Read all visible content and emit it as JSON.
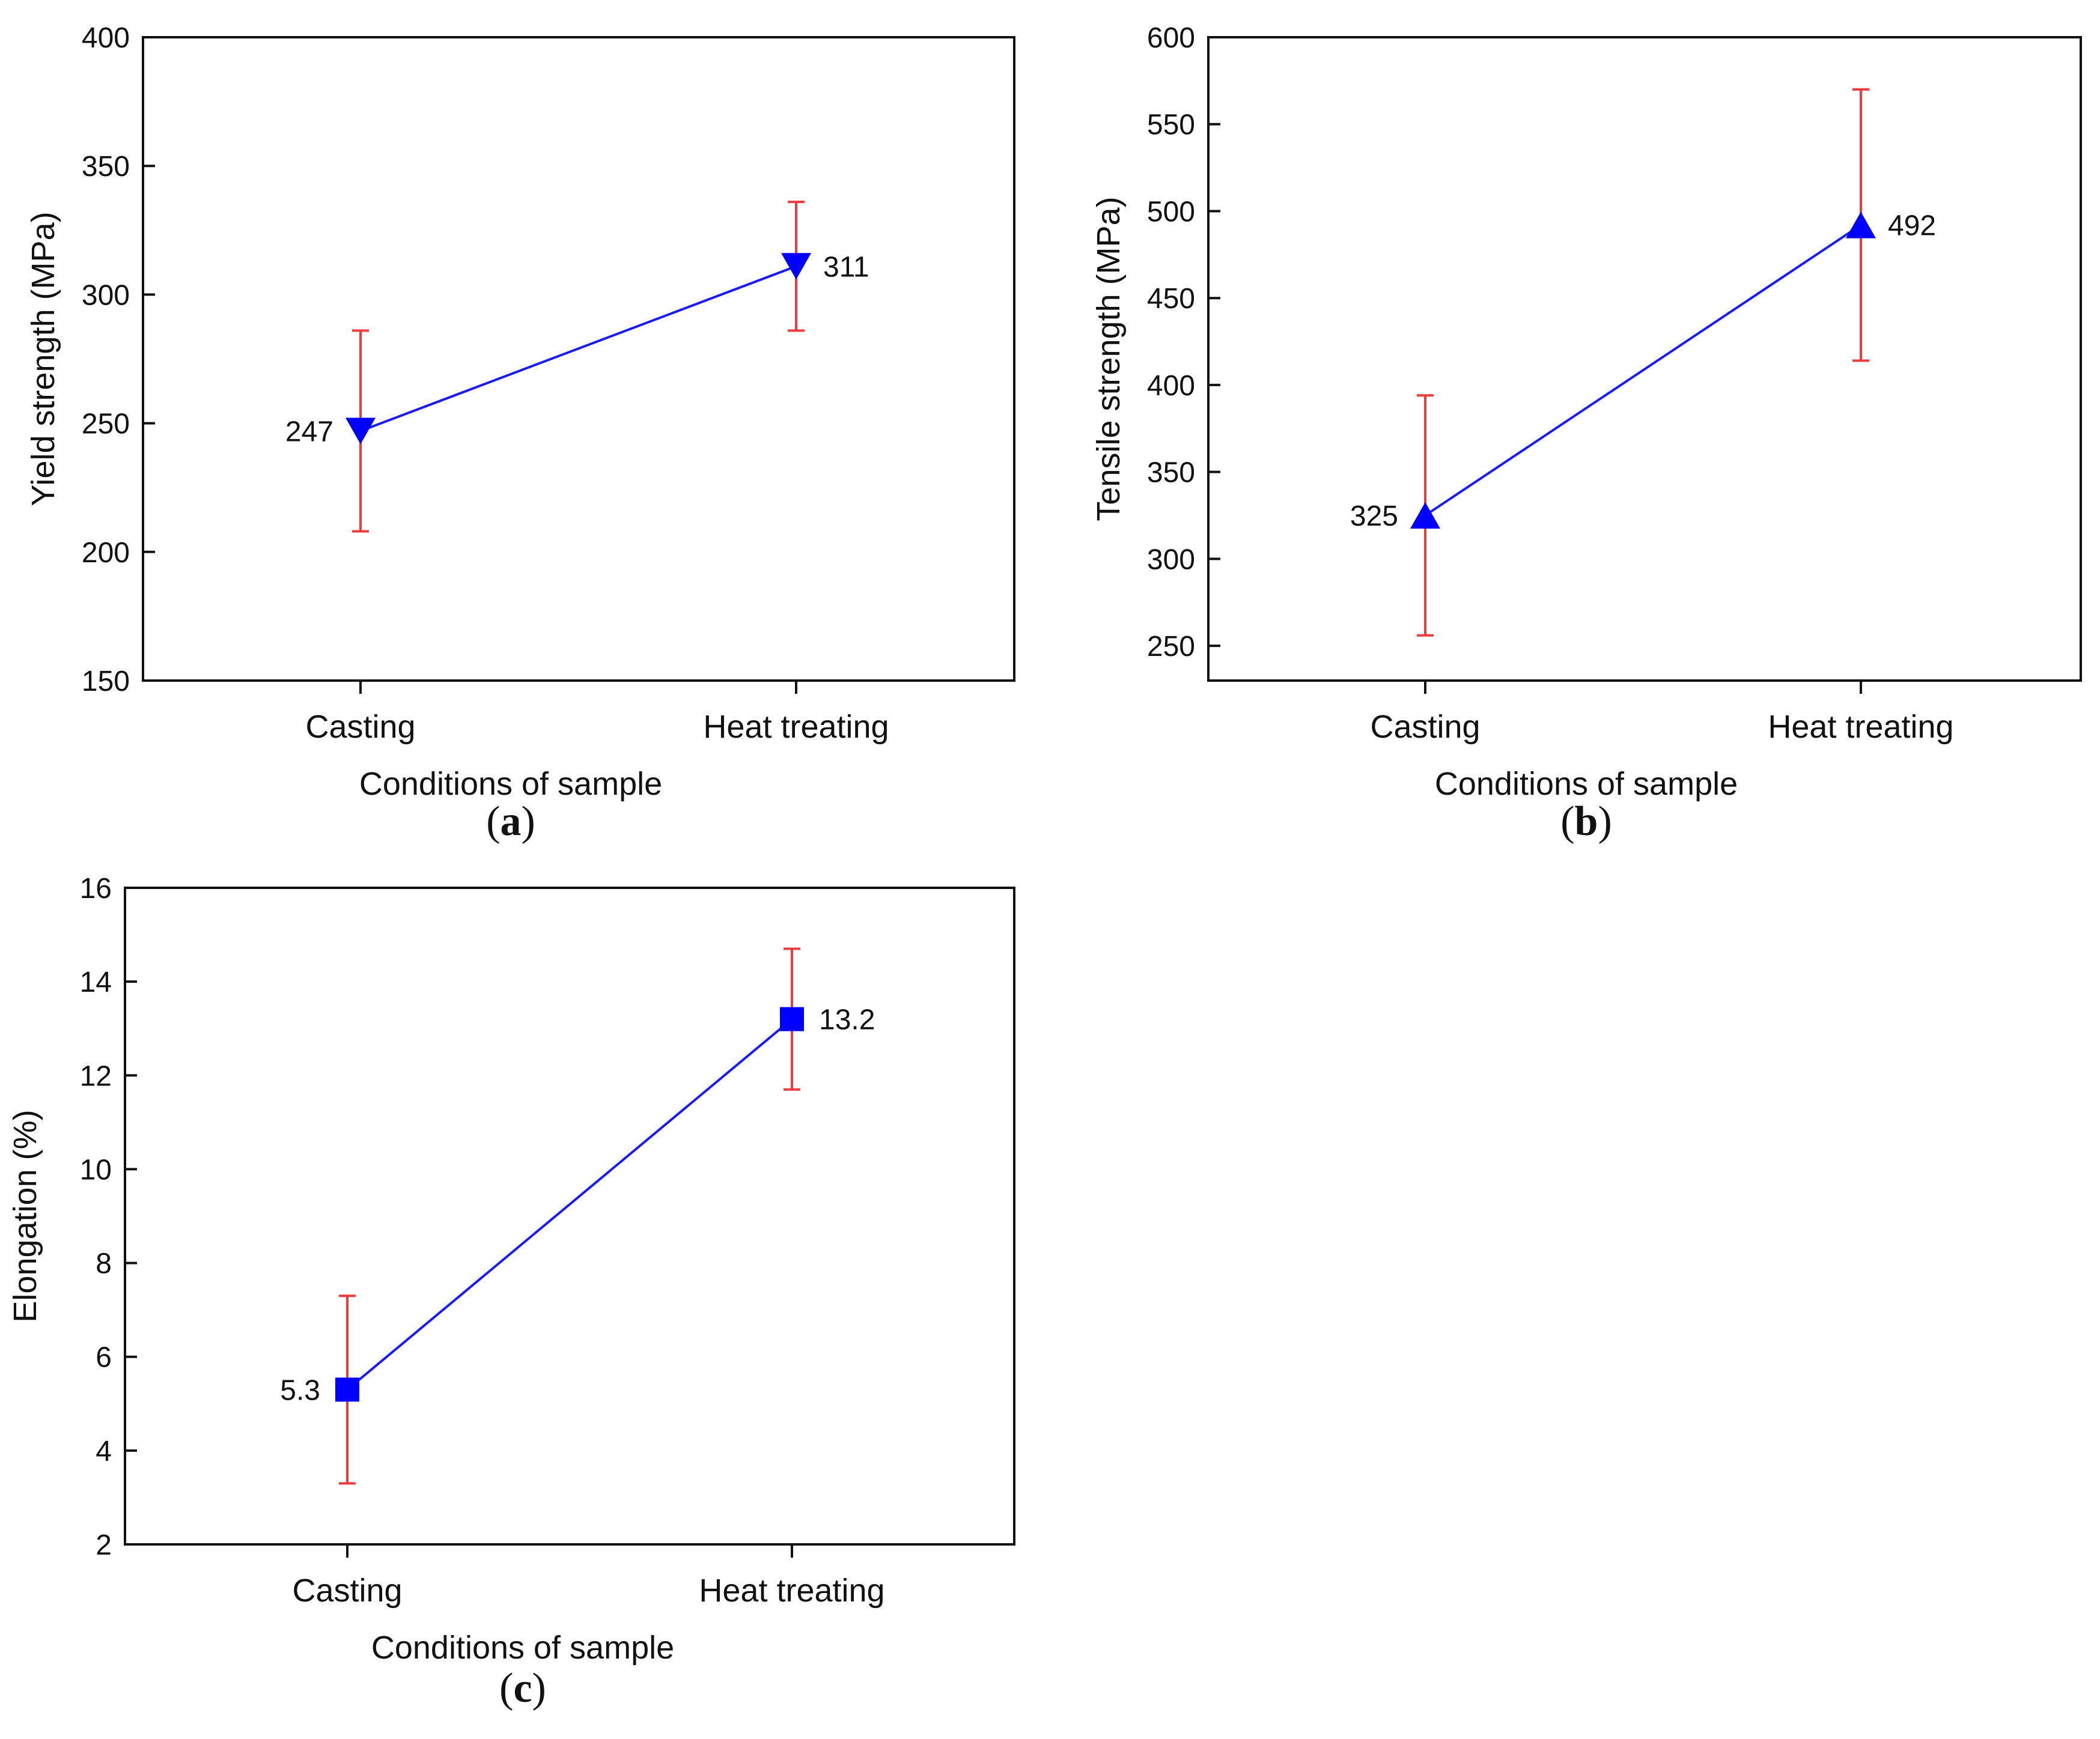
{
  "figure": {
    "colors": {
      "line": "#1a1aff",
      "marker": "#0000ff",
      "errorbar": "#ee3b3b",
      "axis": "#111111"
    }
  },
  "chart_data": [
    {
      "id": "a",
      "type": "line",
      "caption_letter": "a",
      "xlabel": "Conditions of sample",
      "ylabel": "Yield strength (MPa)",
      "categories": [
        "Casting",
        "Heat treating"
      ],
      "values": [
        247,
        311
      ],
      "value_labels": [
        "247",
        "311"
      ],
      "error_low": [
        208,
        286
      ],
      "error_high": [
        286,
        336
      ],
      "ylim": [
        150,
        400
      ],
      "yticks": [
        150,
        200,
        250,
        300,
        350,
        400
      ],
      "ytick_labels": [
        "150",
        "200",
        "250",
        "300",
        "350",
        "400"
      ],
      "marker": "triangle-down",
      "marker_icon": "triangle-down-marker-icon",
      "label_side": [
        "left",
        "right"
      ]
    },
    {
      "id": "b",
      "type": "line",
      "caption_letter": "b",
      "xlabel": "Conditions of sample",
      "ylabel": "Tensile strength (MPa)",
      "categories": [
        "Casting",
        "Heat treating"
      ],
      "values": [
        325,
        492
      ],
      "value_labels": [
        "325",
        "492"
      ],
      "error_low": [
        256,
        414
      ],
      "error_high": [
        394,
        570
      ],
      "ylim": [
        230,
        600
      ],
      "yticks": [
        250,
        300,
        350,
        400,
        450,
        500,
        550,
        600
      ],
      "ytick_labels": [
        "250",
        "300",
        "350",
        "400",
        "450",
        "500",
        "550",
        "600"
      ],
      "marker": "triangle-up",
      "marker_icon": "triangle-up-marker-icon",
      "label_side": [
        "left",
        "right"
      ]
    },
    {
      "id": "c",
      "type": "line",
      "caption_letter": "c",
      "xlabel": "Conditions of sample",
      "ylabel": "Elongation (%)",
      "categories": [
        "Casting",
        "Heat treating"
      ],
      "values": [
        5.3,
        13.2
      ],
      "value_labels": [
        "5.3",
        "13.2"
      ],
      "error_low": [
        3.3,
        11.7
      ],
      "error_high": [
        7.3,
        14.7
      ],
      "ylim": [
        2,
        16
      ],
      "yticks": [
        2,
        4,
        6,
        8,
        10,
        12,
        14,
        16
      ],
      "ytick_labels": [
        "2",
        "4",
        "6",
        "8",
        "10",
        "12",
        "14",
        "16"
      ],
      "marker": "square",
      "marker_icon": "square-marker-icon",
      "label_side": [
        "left",
        "right"
      ]
    }
  ]
}
